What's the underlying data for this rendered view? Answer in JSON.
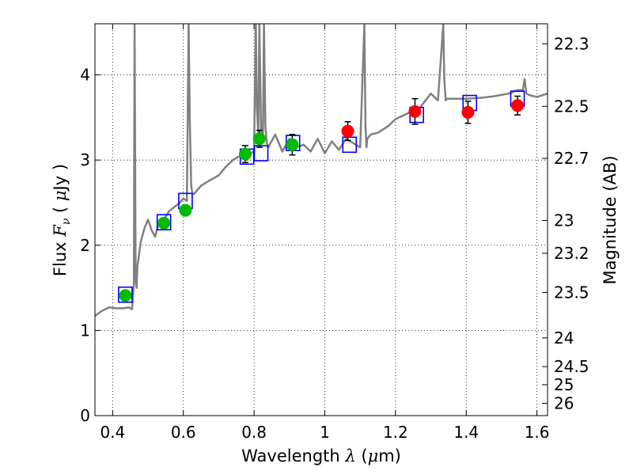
{
  "chart_data": {
    "type": "scatter",
    "title": "",
    "xlabel": {
      "prefix": "Wavelength  ",
      "symbol": "λ",
      "unit_open": " (",
      "unit_mu": "μ",
      "unit_rest": "m)"
    },
    "ylabel": {
      "prefix": "Flux  ",
      "symbol": "F",
      "subscript": "ν",
      "unit_open": "  ( ",
      "unit_mu": "μ",
      "unit_rest": "Jy )"
    },
    "y2label": "Magnitude (AB)",
    "xlim": [
      0.35,
      1.63
    ],
    "ylim": [
      0,
      4.6
    ],
    "grid": true,
    "grid_style": "dotted",
    "x_ticks": [
      0.4,
      0.6,
      0.8,
      1.0,
      1.2,
      1.4,
      1.6
    ],
    "x_tick_labels": [
      "0.4",
      "0.6",
      "0.8",
      "1",
      "1.2",
      "1.4",
      "1.6"
    ],
    "y_ticks": [
      0,
      1,
      2,
      3,
      4
    ],
    "y_tick_labels": [
      "0",
      "1",
      "2",
      "3",
      "4"
    ],
    "y2_ticks": [
      22.3,
      22.5,
      22.7,
      23,
      23.2,
      23.5,
      24,
      24.5,
      25,
      26
    ],
    "y2_tick_labels": [
      "22.3",
      "22.5",
      "22.7",
      "23",
      "23.2",
      "23.5",
      "24",
      "24.5",
      "25",
      "26"
    ],
    "colors": {
      "model": "#808080",
      "model_points": "#0000ff",
      "optical": "#00bb00",
      "nir": "#ff0000",
      "errorbar": "#000000"
    },
    "model_spectrum": {
      "x": [
        0.35,
        0.37,
        0.39,
        0.41,
        0.43,
        0.445,
        0.455,
        0.46,
        0.462,
        0.465,
        0.468,
        0.47,
        0.48,
        0.49,
        0.5,
        0.51,
        0.52,
        0.53,
        0.545,
        0.56,
        0.575,
        0.59,
        0.6,
        0.61,
        0.615,
        0.618,
        0.622,
        0.625,
        0.63,
        0.65,
        0.67,
        0.7,
        0.72,
        0.74,
        0.76,
        0.78,
        0.79,
        0.8,
        0.805,
        0.808,
        0.812,
        0.815,
        0.82,
        0.825,
        0.828,
        0.832,
        0.836,
        0.84,
        0.86,
        0.88,
        0.9,
        0.92,
        0.94,
        0.96,
        0.98,
        1.0,
        1.02,
        1.04,
        1.06,
        1.08,
        1.1,
        1.112,
        1.115,
        1.118,
        1.12,
        1.13,
        1.15,
        1.18,
        1.2,
        1.22,
        1.25,
        1.27,
        1.285,
        1.3,
        1.32,
        1.335,
        1.338,
        1.342,
        1.345,
        1.36,
        1.4,
        1.44,
        1.48,
        1.52,
        1.545,
        1.56,
        1.565,
        1.57,
        1.58,
        1.6,
        1.63
      ],
      "y": [
        1.17,
        1.23,
        1.27,
        1.26,
        1.26,
        1.27,
        1.25,
        1.55,
        4.6,
        1.6,
        1.5,
        1.75,
        2.05,
        2.2,
        2.3,
        2.18,
        2.1,
        2.25,
        2.3,
        2.4,
        2.45,
        2.5,
        2.55,
        2.52,
        4.6,
        3.5,
        2.7,
        2.62,
        2.6,
        2.7,
        2.75,
        2.82,
        2.92,
        3.0,
        3.05,
        3.0,
        3.08,
        3.1,
        4.6,
        3.6,
        3.3,
        4.6,
        3.35,
        3.25,
        4.6,
        3.4,
        3.2,
        3.15,
        3.3,
        3.1,
        3.25,
        3.15,
        3.18,
        3.1,
        3.25,
        3.08,
        3.22,
        3.12,
        3.25,
        3.2,
        3.15,
        4.6,
        3.4,
        3.15,
        3.25,
        3.3,
        3.32,
        3.4,
        3.48,
        3.52,
        3.58,
        3.62,
        3.7,
        3.78,
        3.7,
        4.6,
        3.95,
        3.7,
        3.72,
        3.72,
        3.72,
        3.73,
        3.75,
        3.78,
        3.82,
        3.82,
        3.95,
        3.78,
        3.76,
        3.74,
        3.78
      ]
    },
    "model_points": {
      "x": [
        0.436,
        0.545,
        0.606,
        0.78,
        0.82,
        0.91,
        1.07,
        1.26,
        1.41,
        1.545
      ],
      "y": [
        1.42,
        2.27,
        2.52,
        3.04,
        3.08,
        3.2,
        3.18,
        3.53,
        3.67,
        3.72
      ]
    },
    "observed_optical": {
      "x": [
        0.436,
        0.545,
        0.606,
        0.775,
        0.815,
        0.908
      ],
      "y": [
        1.41,
        2.26,
        2.41,
        3.07,
        3.25,
        3.18
      ],
      "yerr": [
        0.05,
        0.05,
        0.05,
        0.1,
        0.1,
        0.12
      ]
    },
    "observed_nir": {
      "x": [
        1.065,
        1.255,
        1.405,
        1.545
      ],
      "y": [
        3.34,
        3.57,
        3.56,
        3.64
      ],
      "yerr": [
        0.11,
        0.15,
        0.13,
        0.11
      ]
    }
  }
}
